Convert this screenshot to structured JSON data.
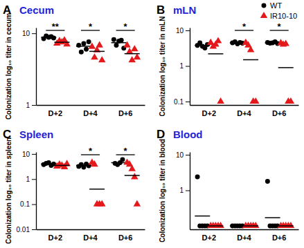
{
  "chart_data": [
    {
      "type": "scatter",
      "panel_label": "A",
      "title": "Cecum",
      "ylabel": "Colonization log₁₀ titer in cecum",
      "log": "y",
      "ylim": [
        1,
        12
      ],
      "yticks": [
        1,
        10
      ],
      "categories": [
        "D+2",
        "D+4",
        "D+6"
      ],
      "series": [
        {
          "name": "WT",
          "color": "#000000",
          "marker": "circle",
          "values": [
            [
              8.4,
              9.2,
              8.8,
              9.0,
              8.6
            ],
            [
              6.8,
              5.5,
              7.2,
              6.0,
              7.6
            ],
            [
              8.2,
              6.8,
              7.8,
              8.0,
              6.2
            ]
          ],
          "means": [
            8.8,
            6.6,
            7.4
          ]
        },
        {
          "name": "IR10-10",
          "color": "#e3191c",
          "marker": "triangle",
          "values": [
            [
              7.2,
              7.8,
              7.5,
              8.0,
              7.0
            ],
            [
              6.5,
              4.6,
              5.8,
              6.8,
              4.2
            ],
            [
              6.8,
              5.5,
              4.2,
              6.0,
              4.6
            ]
          ],
          "means": [
            7.5,
            5.6,
            5.2
          ]
        }
      ],
      "annotations": [
        {
          "category": "D+2",
          "text": "**"
        },
        {
          "category": "D+4",
          "text": "*"
        },
        {
          "category": "D+6",
          "text": "*"
        }
      ]
    },
    {
      "type": "scatter",
      "panel_label": "B",
      "title": "mLN",
      "ylabel": "Colonization log₁₀ titer in mLN",
      "log": "y",
      "ylim": [
        0.08,
        12
      ],
      "yticks": [
        0.1,
        1,
        10
      ],
      "legend": "upper right",
      "categories": [
        "D+2",
        "D+4",
        "D+6"
      ],
      "series": [
        {
          "name": "WT",
          "color": "#000000",
          "marker": "circle",
          "values": [
            [
              3.8,
              4.5,
              3.6,
              3.2,
              4.0
            ],
            [
              4.5,
              4.8,
              4.2,
              4.6,
              4.4
            ],
            [
              4.6,
              4.4,
              4.5,
              4.8,
              4.3
            ]
          ],
          "means": [
            3.8,
            4.5,
            4.5
          ]
        },
        {
          "name": "IR10-10",
          "color": "#e3191c",
          "marker": "triangle",
          "values": [
            [
              4.5,
              3.5,
              4.0,
              5.0,
              0.1
            ],
            [
              4.5,
              3.8,
              2.8,
              0.1,
              0.1
            ],
            [
              4.4,
              4.0,
              4.2,
              0.1,
              0.1
            ]
          ],
          "means": [
            2.2,
            1.5,
            0.9
          ]
        }
      ],
      "annotations": [
        {
          "category": "D+4",
          "text": "*"
        },
        {
          "category": "D+6",
          "text": "*"
        }
      ]
    },
    {
      "type": "scatter",
      "panel_label": "C",
      "title": "Spleen",
      "ylabel": "Colonization log₁₀ titer in spleen",
      "log": "y",
      "ylim": [
        0.01,
        12
      ],
      "yticks": [
        0.01,
        0.1,
        1,
        10
      ],
      "categories": [
        "D+2",
        "D+4",
        "D+6"
      ],
      "series": [
        {
          "name": "WT",
          "color": "#000000",
          "marker": "circle",
          "values": [
            [
              3.8,
              4.2,
              4.5,
              3.5,
              4.0
            ],
            [
              3.2,
              3.8,
              3.0,
              4.0,
              3.4
            ],
            [
              4.2,
              3.8,
              4.5,
              6.0
            ]
          ],
          "means": [
            4.0,
            3.5,
            4.5
          ]
        },
        {
          "name": "IR10-10",
          "color": "#e3191c",
          "marker": "triangle",
          "values": [
            [
              3.2,
              3.8,
              3.5,
              3.0,
              4.0
            ],
            [
              4.5,
              3.8,
              0.1,
              0.1,
              0.1
            ],
            [
              4.5,
              3.8,
              2.5,
              1.2,
              0.1
            ]
          ],
          "means": [
            3.5,
            0.4,
            1.4
          ]
        }
      ],
      "annotations": [
        {
          "category": "D+4",
          "text": "*"
        },
        {
          "category": "D+6",
          "text": "*"
        }
      ]
    },
    {
      "type": "scatter",
      "panel_label": "D",
      "title": "Blood",
      "ylabel": "Colonization log₁₀ titer in blood",
      "log": "y",
      "ylim": [
        0.08,
        12
      ],
      "yticks": [
        1,
        10
      ],
      "categories": [
        "D+2",
        "D+4",
        "D+6"
      ],
      "series": [
        {
          "name": "WT",
          "color": "#000000",
          "marker": "circle",
          "values": [
            [
              2.4,
              0.1,
              0.1,
              0.1,
              0.1
            ],
            [
              0.1,
              0.1,
              0.1,
              0.1,
              0.1
            ],
            [
              1.8,
              0.1,
              0.1,
              0.1,
              0.1
            ]
          ],
          "means": [
            0.19,
            0.1,
            0.17
          ]
        },
        {
          "name": "IR10-10",
          "color": "#e3191c",
          "marker": "triangle",
          "values": [
            [
              0.1,
              0.1,
              0.1,
              0.1,
              0.1
            ],
            [
              0.1,
              0.1,
              0.1,
              0.1,
              0.1
            ],
            [
              0.1,
              0.1,
              0.1,
              0.1,
              0.1
            ]
          ],
          "means": [
            0.1,
            0.1,
            0.1
          ]
        }
      ]
    }
  ]
}
